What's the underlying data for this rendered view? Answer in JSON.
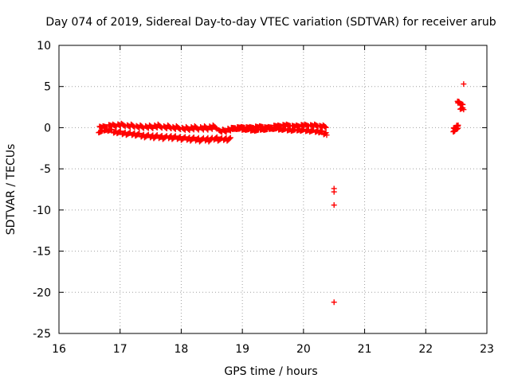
{
  "chart_data": {
    "type": "scatter",
    "title": "Day 074 of 2019, Sidereal Day-to-day VTEC variation (SDTVAR) for receiver arub",
    "xlabel": "GPS time / hours",
    "ylabel": "SDTVAR / TECUs",
    "xlim": [
      16,
      23
    ],
    "ylim": [
      -25,
      10
    ],
    "xticks": [
      16,
      17,
      18,
      19,
      20,
      21,
      22,
      23
    ],
    "yticks": [
      -25,
      -20,
      -15,
      -10,
      -5,
      0,
      5,
      10
    ],
    "grid": true,
    "marker": "+",
    "marker_color": "#ff0000",
    "series": [
      {
        "name": "SDTVAR",
        "points": [
          [
            16.65,
            -0.6
          ],
          [
            16.72,
            0.2
          ],
          [
            16.8,
            -0.4
          ],
          [
            16.88,
            0.4
          ],
          [
            16.95,
            -0.7
          ],
          [
            17.02,
            0.5
          ],
          [
            17.1,
            -0.9
          ],
          [
            17.18,
            0.4
          ],
          [
            17.25,
            -1.0
          ],
          [
            17.33,
            0.3
          ],
          [
            17.4,
            -1.2
          ],
          [
            17.48,
            0.3
          ],
          [
            17.55,
            -1.3
          ],
          [
            17.62,
            0.4
          ],
          [
            17.7,
            -1.4
          ],
          [
            17.78,
            0.3
          ],
          [
            17.85,
            -1.4
          ],
          [
            17.92,
            0.2
          ],
          [
            18.0,
            -1.5
          ],
          [
            18.08,
            0.1
          ],
          [
            18.15,
            -1.6
          ],
          [
            18.22,
            0.2
          ],
          [
            18.3,
            -1.7
          ],
          [
            18.38,
            0.2
          ],
          [
            18.45,
            -1.7
          ],
          [
            18.52,
            0.3
          ],
          [
            18.6,
            -1.6
          ],
          [
            18.68,
            -0.2
          ],
          [
            18.75,
            -1.6
          ],
          [
            18.82,
            0.0
          ],
          [
            18.9,
            -0.2
          ],
          [
            18.98,
            0.1
          ],
          [
            19.05,
            -0.3
          ],
          [
            19.12,
            0.1
          ],
          [
            19.2,
            -0.4
          ],
          [
            19.28,
            0.2
          ],
          [
            19.35,
            -0.3
          ],
          [
            19.42,
            0.1
          ],
          [
            19.5,
            -0.2
          ],
          [
            19.58,
            0.3
          ],
          [
            19.65,
            -0.3
          ],
          [
            19.72,
            0.4
          ],
          [
            19.8,
            -0.4
          ],
          [
            19.88,
            0.3
          ],
          [
            19.95,
            -0.4
          ],
          [
            20.02,
            0.4
          ],
          [
            20.1,
            -0.5
          ],
          [
            20.18,
            0.4
          ],
          [
            20.25,
            -0.6
          ],
          [
            20.32,
            0.3
          ],
          [
            20.38,
            -0.9
          ],
          [
            20.5,
            -7.4
          ],
          [
            20.5,
            -7.8
          ],
          [
            20.5,
            -9.4
          ],
          [
            20.5,
            -21.2
          ],
          [
            22.45,
            -0.5
          ],
          [
            22.48,
            0.0
          ],
          [
            22.5,
            -0.2
          ],
          [
            22.53,
            0.3
          ],
          [
            22.52,
            3.2
          ],
          [
            22.55,
            3.0
          ],
          [
            22.62,
            2.2
          ],
          [
            22.62,
            5.3
          ]
        ]
      }
    ]
  }
}
